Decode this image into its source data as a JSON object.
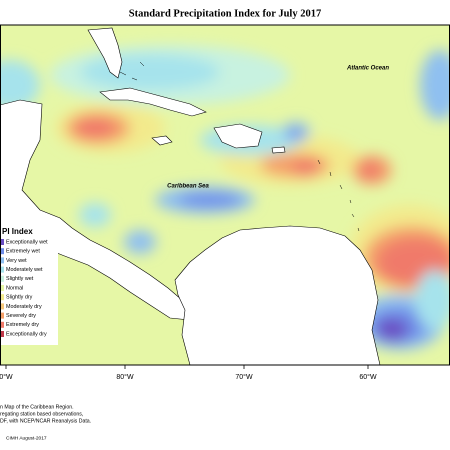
{
  "title": "Standard Precipitation Index for July 2017",
  "map_labels": {
    "ocean": "Atlantic Ocean",
    "sea": "Caribbean Sea"
  },
  "legend": {
    "title": "PI Index",
    "items": [
      {
        "label": "Exceptionally wet",
        "color": "#6a4fc4"
      },
      {
        "label": "Extremely wet",
        "color": "#6f8ee8"
      },
      {
        "label": "Very wet",
        "color": "#8fc0f0"
      },
      {
        "label": "Moderately wet",
        "color": "#a6e3ec"
      },
      {
        "label": "Slightly wet",
        "color": "#c8f2e0"
      },
      {
        "label": "Normal",
        "color": "#e6f7a6"
      },
      {
        "label": "Slightly dry",
        "color": "#f3ea8c"
      },
      {
        "label": "Moderately dry",
        "color": "#f6c77a"
      },
      {
        "label": "Severely dry",
        "color": "#f4a06a"
      },
      {
        "label": "Extremely dry",
        "color": "#f07a6a"
      },
      {
        "label": "Exceptionally dry",
        "color": "#c0394a"
      }
    ]
  },
  "longitude_labels": [
    "0°W",
    "80°W",
    "70°W",
    "60°W"
  ],
  "footnote": [
    "n Map of the Caribbean Region.",
    "regating station based observations,",
    "DF, with NCEP/NCAR Reanalysis Data."
  ],
  "credit": "CIMH August-2017"
}
